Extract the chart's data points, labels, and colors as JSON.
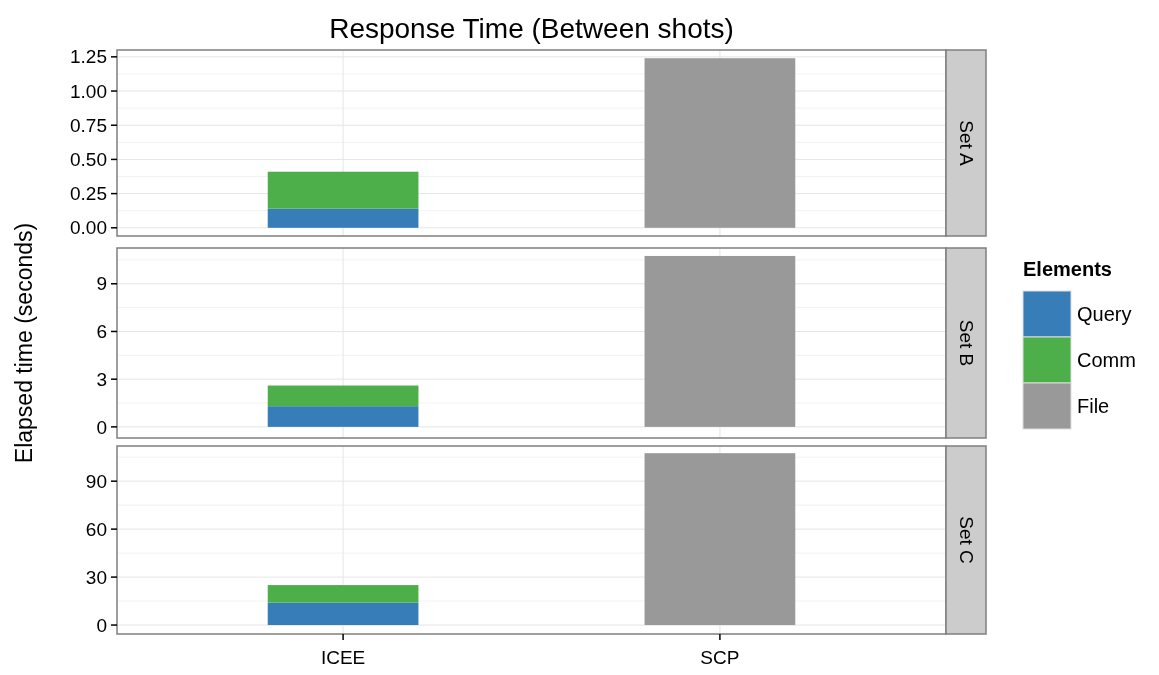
{
  "chart_data": [
    {
      "type": "bar",
      "title": "Response Time (Between shots)",
      "annotations": [
        "Set A"
      ],
      "categories": [
        null,
        null
      ],
      "stacked": true,
      "series": [
        {
          "color": "#377eb8",
          "values": [
            0.14,
            null
          ]
        },
        {
          "color": "#4daf4a",
          "values": [
            0.27,
            null
          ]
        },
        {
          "color": "#999999",
          "values": [
            null,
            1.24
          ]
        }
      ],
      "ylim": [
        -0.06,
        1.3
      ],
      "yticks": [
        {
          "value": 0,
          "label": "0.00"
        },
        {
          "value": 0.25,
          "label": "0.25"
        },
        {
          "value": 0.5,
          "label": "0.50"
        },
        {
          "value": 0.75,
          "label": "0.75"
        },
        {
          "value": 1,
          "label": "1.00"
        },
        {
          "value": 1.25,
          "label": "1.25"
        }
      ],
      "grid": true,
      "tick_labels": "y"
    },
    {
      "type": "bar",
      "annotations": [
        "Set B"
      ],
      "ylabel": "Elapsed time (seconds)",
      "legend_title": "Elements",
      "legend": "right",
      "categories": [
        null,
        null
      ],
      "stacked": true,
      "series": [
        {
          "name": "Query",
          "color": "#377eb8",
          "values": [
            1.3,
            null
          ]
        },
        {
          "name": "Comm",
          "color": "#4daf4a",
          "values": [
            1.3,
            null
          ]
        },
        {
          "name": "File",
          "color": "#999999",
          "values": [
            null,
            10.75
          ]
        }
      ],
      "ylim": [
        -0.7,
        11.25
      ],
      "yticks": [
        0,
        3,
        6,
        9
      ],
      "grid": true,
      "tick_labels": "y"
    },
    {
      "type": "bar",
      "annotations": [
        "Set C"
      ],
      "categories": [
        "ICEE",
        "SCP"
      ],
      "stacked": true,
      "series": [
        {
          "color": "#377eb8",
          "values": [
            14,
            null
          ]
        },
        {
          "color": "#4daf4a",
          "values": [
            11,
            null
          ]
        },
        {
          "color": "#999999",
          "values": [
            null,
            107.5
          ]
        }
      ],
      "ylim": [
        -5.6,
        112
      ],
      "yticks": [
        0,
        30,
        60,
        90
      ],
      "grid": true
    }
  ]
}
